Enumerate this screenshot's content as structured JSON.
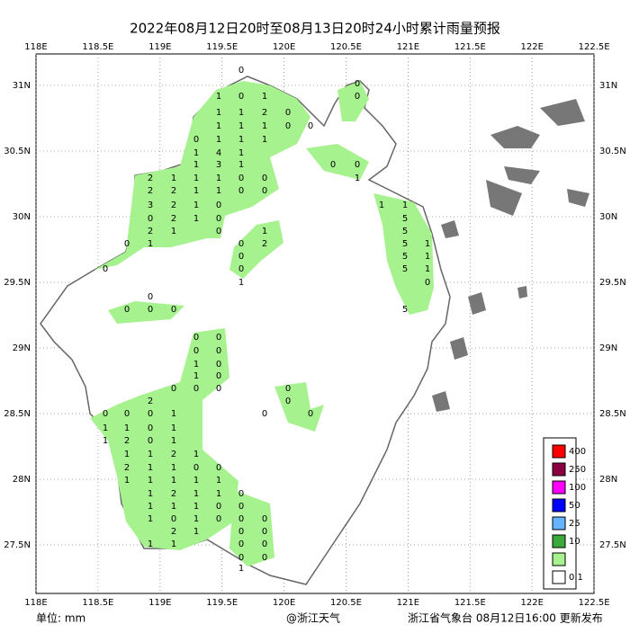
{
  "title": "2022年08月12日20时至08月13日20时24小时累计雨量预报",
  "lon_labels": [
    "118E",
    "118.5E",
    "119E",
    "119.5E",
    "120E",
    "120.5E",
    "121E",
    "121.5E",
    "122E",
    "122.5E"
  ],
  "lat_labels": [
    "31N",
    "30.5N",
    "30N",
    "29.5N",
    "29N",
    "28.5N",
    "28N",
    "27.5N"
  ],
  "legend": [
    {
      "label": 400,
      "color": "#ff0000"
    },
    {
      "label": 250,
      "color": "#8b0040"
    },
    {
      "label": 100,
      "color": "#ff00ff"
    },
    {
      "label": 50,
      "color": "#0000ff"
    },
    {
      "label": 25,
      "color": "#66b3ff"
    },
    {
      "label": 10,
      "color": "#3aaa3a"
    },
    {
      "label": 0.1,
      "color": "#a6f28f"
    }
  ],
  "stations": [
    [
      0
    ],
    [
      0
    ],
    [
      1,
      0,
      1,
      0
    ],
    [
      1,
      1,
      2,
      0
    ],
    [
      1,
      1,
      1,
      0,
      0
    ],
    [
      0,
      1,
      1,
      1
    ],
    [
      1,
      4,
      1
    ],
    [
      1,
      3,
      1,
      0,
      0
    ],
    [
      2,
      1,
      1,
      1,
      0,
      0,
      1
    ],
    [
      2,
      2,
      1,
      1,
      0,
      0
    ],
    [
      3,
      2,
      1,
      0,
      1,
      1
    ],
    [
      0,
      2,
      1,
      0,
      5
    ],
    [
      2,
      1,
      0,
      1,
      5
    ],
    [
      0,
      1,
      0,
      2,
      5,
      1
    ],
    [
      0,
      5,
      1
    ],
    [
      0,
      0,
      5,
      1
    ],
    [
      1,
      0
    ],
    [
      0
    ],
    [
      0,
      0,
      0,
      5
    ],
    [
      0,
      0
    ],
    [
      0,
      0
    ],
    [
      1,
      0
    ],
    [
      1,
      0
    ],
    [
      0,
      0,
      0,
      0
    ],
    [
      2,
      0
    ],
    [
      0,
      0,
      0,
      1,
      0,
      0
    ],
    [
      1,
      1,
      0,
      1
    ],
    [
      1,
      2,
      0,
      1
    ],
    [
      1,
      1,
      2,
      1
    ],
    [
      2,
      1,
      1,
      0,
      0
    ],
    [
      1,
      1,
      1,
      1,
      1
    ],
    [
      1,
      2,
      1,
      1,
      0
    ],
    [
      1,
      1,
      1,
      0,
      0
    ],
    [
      1,
      0,
      1,
      0,
      0,
      0
    ],
    [
      2,
      1,
      0,
      0
    ],
    [
      1,
      1,
      0,
      0
    ],
    [
      0,
      0
    ],
    [
      1
    ]
  ],
  "unit": "单位: mm",
  "watermark": "@浙江天气",
  "footer": "浙江省气象台 08月12日16:00 更新发布"
}
